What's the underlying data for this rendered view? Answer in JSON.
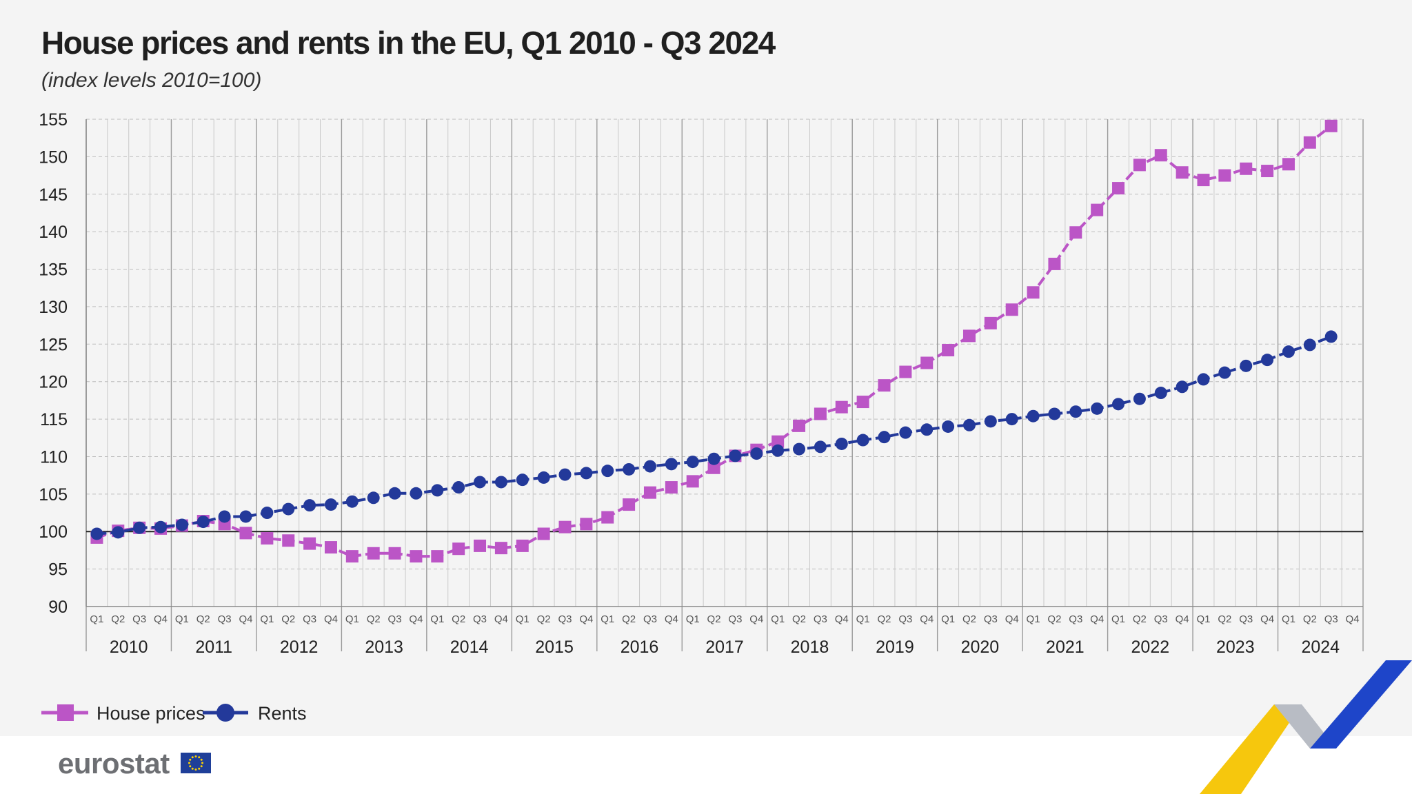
{
  "colors": {
    "house_prices": "#bb55c6",
    "rents": "#23399a",
    "baseline": "#222222",
    "eu_flag": "#1f3f99",
    "eu_stars": "#ffd200"
  },
  "branding": {
    "logo_text": "eurostat",
    "icon": "eu-flag-icon"
  },
  "chart_data": {
    "type": "line",
    "title": "House prices and rents in the EU, Q1 2010 - Q3 2024",
    "subtitle": "(index levels 2010=100)",
    "quarter_labels": [
      "Q1",
      "Q2",
      "Q3",
      "Q4"
    ],
    "years": [
      "2010",
      "2011",
      "2012",
      "2013",
      "2014",
      "2015",
      "2016",
      "2017",
      "2018",
      "2019",
      "2020",
      "2021",
      "2022",
      "2023",
      "2024"
    ],
    "x": [
      "2010-Q1",
      "2010-Q2",
      "2010-Q3",
      "2010-Q4",
      "2011-Q1",
      "2011-Q2",
      "2011-Q3",
      "2011-Q4",
      "2012-Q1",
      "2012-Q2",
      "2012-Q3",
      "2012-Q4",
      "2013-Q1",
      "2013-Q2",
      "2013-Q3",
      "2013-Q4",
      "2014-Q1",
      "2014-Q2",
      "2014-Q3",
      "2014-Q4",
      "2015-Q1",
      "2015-Q2",
      "2015-Q3",
      "2015-Q4",
      "2016-Q1",
      "2016-Q2",
      "2016-Q3",
      "2016-Q4",
      "2017-Q1",
      "2017-Q2",
      "2017-Q3",
      "2017-Q4",
      "2018-Q1",
      "2018-Q2",
      "2018-Q3",
      "2018-Q4",
      "2019-Q1",
      "2019-Q2",
      "2019-Q3",
      "2019-Q4",
      "2020-Q1",
      "2020-Q2",
      "2020-Q3",
      "2020-Q4",
      "2021-Q1",
      "2021-Q2",
      "2021-Q3",
      "2021-Q4",
      "2022-Q1",
      "2022-Q2",
      "2022-Q3",
      "2022-Q4",
      "2023-Q1",
      "2023-Q2",
      "2023-Q3",
      "2023-Q4",
      "2024-Q1",
      "2024-Q2",
      "2024-Q3"
    ],
    "series": [
      {
        "name": "House prices",
        "marker": "square",
        "values": [
          99.2,
          100.1,
          100.5,
          100.4,
          100.8,
          101.4,
          101.0,
          99.8,
          99.1,
          98.8,
          98.4,
          97.9,
          96.7,
          97.1,
          97.1,
          96.7,
          96.7,
          97.7,
          98.1,
          97.8,
          98.1,
          99.7,
          100.6,
          101.0,
          101.9,
          103.6,
          105.2,
          105.9,
          106.7,
          108.5,
          110.1,
          110.9,
          112.0,
          114.1,
          115.7,
          116.6,
          117.3,
          119.5,
          121.3,
          122.5,
          124.2,
          126.1,
          127.8,
          129.6,
          131.9,
          135.7,
          139.9,
          142.9,
          145.8,
          148.9,
          150.2,
          147.9,
          146.9,
          147.5,
          148.4,
          148.1,
          149.0,
          151.9,
          154.1
        ]
      },
      {
        "name": "Rents",
        "marker": "circle",
        "values": [
          99.7,
          99.9,
          100.5,
          100.6,
          100.9,
          101.3,
          102.0,
          102.0,
          102.5,
          103.0,
          103.5,
          103.6,
          104.0,
          104.5,
          105.1,
          105.1,
          105.5,
          105.9,
          106.6,
          106.6,
          106.9,
          107.2,
          107.6,
          107.8,
          108.1,
          108.3,
          108.7,
          109.0,
          109.3,
          109.7,
          110.1,
          110.4,
          110.8,
          111.0,
          111.3,
          111.7,
          112.2,
          112.6,
          113.2,
          113.6,
          114.0,
          114.2,
          114.7,
          115.0,
          115.4,
          115.7,
          116.0,
          116.4,
          117.0,
          117.7,
          118.5,
          119.3,
          120.3,
          121.2,
          122.1,
          122.9,
          124.0,
          124.9,
          126.0
        ]
      }
    ],
    "ylim": [
      90,
      155
    ],
    "yticks": [
      90,
      95,
      100,
      105,
      110,
      115,
      120,
      125,
      130,
      135,
      140,
      145,
      150,
      155
    ],
    "baseline": 100,
    "grid": true,
    "legend": {
      "position": "bottom-left",
      "entries": [
        "House prices",
        "Rents"
      ]
    }
  }
}
